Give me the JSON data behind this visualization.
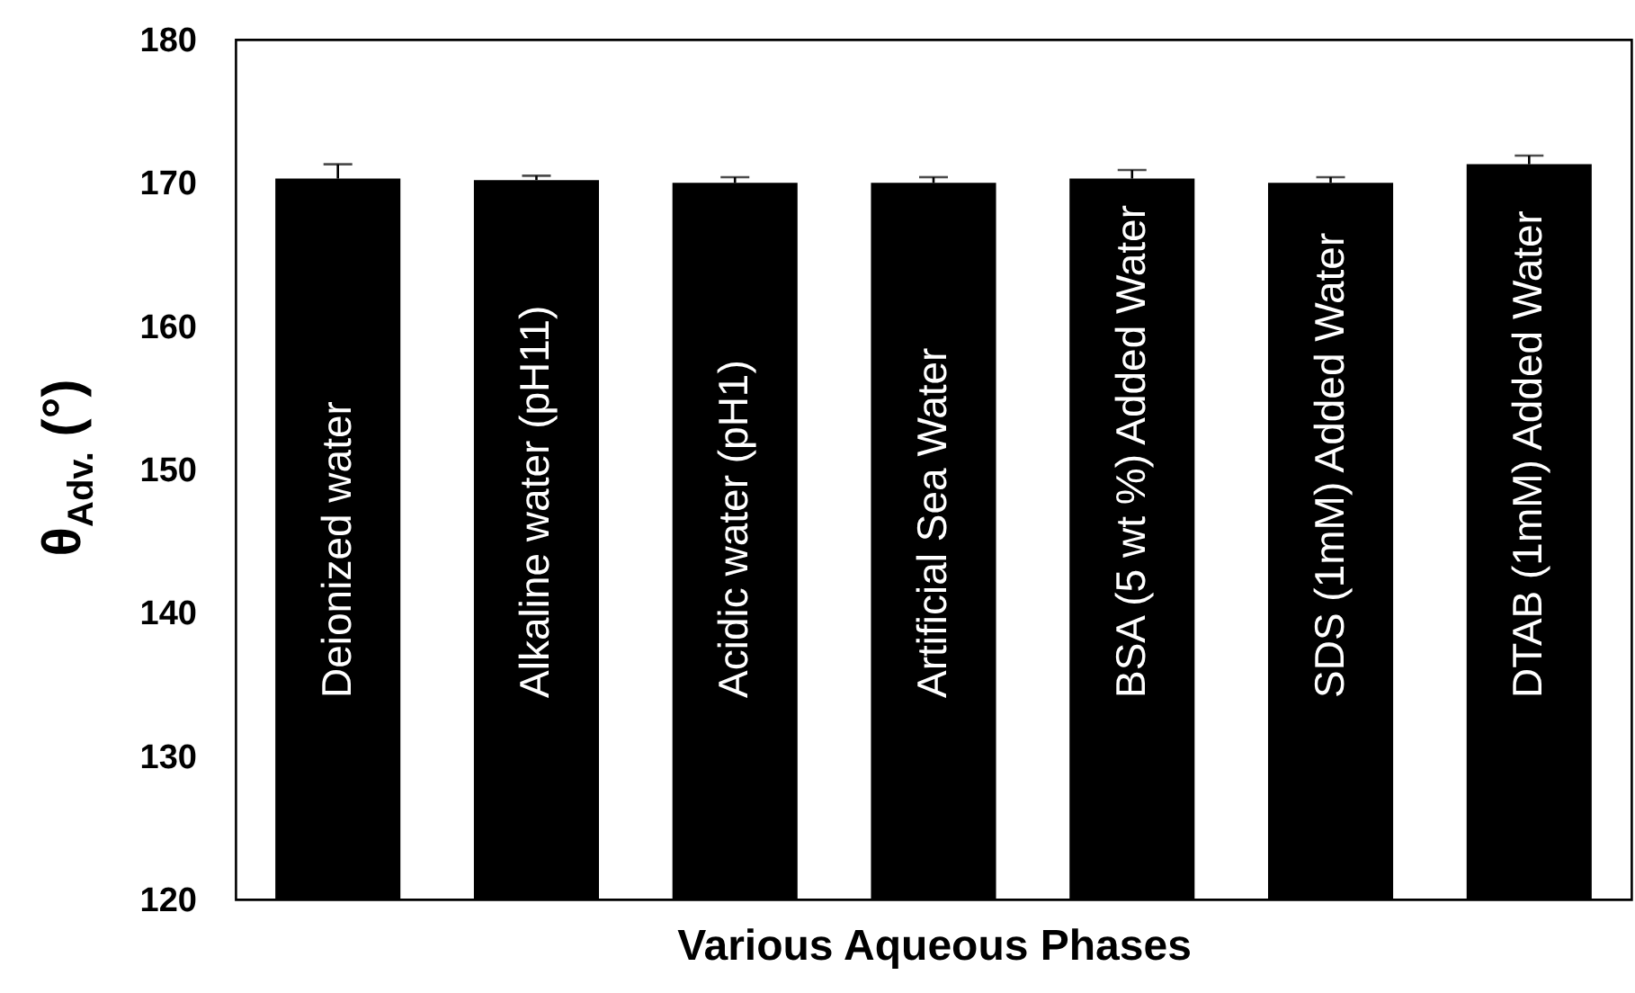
{
  "chart_data": {
    "type": "bar",
    "xlabel": "Various Aqueous Phases",
    "ylabel": "θ$_{Adv.}$ (°)",
    "categories": [
      "Deionized water",
      "Alkaline water (pH11)",
      "Acidic water (pH1)",
      "Artificial Sea Water",
      "BSA (5 wt %) Added Water",
      "SDS (1mM) Added Water",
      "DTAB (1mM) Added Water"
    ],
    "values": [
      170.3,
      170.2,
      170.0,
      170.0,
      170.3,
      170.0,
      171.3
    ],
    "errors": [
      [
        170.3,
        171.3
      ],
      [
        170.2,
        170.5
      ],
      [
        170.0,
        170.4
      ],
      [
        170.0,
        170.4
      ],
      [
        170.3,
        170.9
      ],
      [
        170.0,
        170.4
      ],
      [
        171.3,
        171.9
      ]
    ],
    "color": "#000000",
    "ylim": [
      120,
      180
    ],
    "yticks": [
      120,
      130,
      140,
      150,
      160,
      170,
      180
    ],
    "grid": false,
    "tick_labels": "y"
  }
}
